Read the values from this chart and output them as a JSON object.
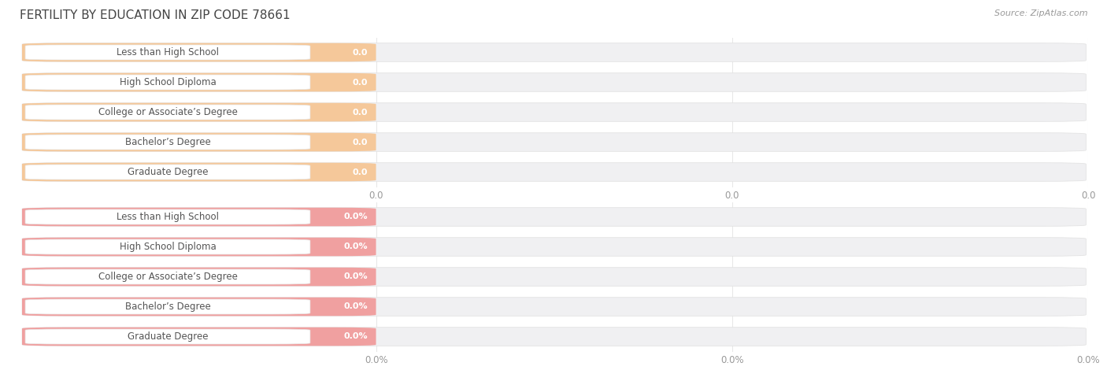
{
  "title": "FERTILITY BY EDUCATION IN ZIP CODE 78661",
  "source": "Source: ZipAtlas.com",
  "top_group": {
    "categories": [
      "Less than High School",
      "High School Diploma",
      "College or Associate’s Degree",
      "Bachelor’s Degree",
      "Graduate Degree"
    ],
    "bar_color": "#F5C89A",
    "bg_color": "#FAE8D2",
    "value_labels": [
      "0.0",
      "0.0",
      "0.0",
      "0.0",
      "0.0"
    ],
    "x_tick_labels": [
      "0.0",
      "0.0",
      "0.0"
    ]
  },
  "bottom_group": {
    "categories": [
      "Less than High School",
      "High School Diploma",
      "College or Associate’s Degree",
      "Bachelor’s Degree",
      "Graduate Degree"
    ],
    "bar_color": "#F0A0A0",
    "bg_color": "#F5D0D0",
    "value_labels": [
      "0.0%",
      "0.0%",
      "0.0%",
      "0.0%",
      "0.0%"
    ],
    "x_tick_labels": [
      "0.0%",
      "0.0%",
      "0.0%"
    ]
  },
  "background_color": "#ffffff",
  "bar_bg_color": "#f0f0f2",
  "title_fontsize": 11,
  "cat_fontsize": 8.5,
  "value_fontsize": 8,
  "source_fontsize": 8,
  "tick_fontsize": 8.5,
  "tick_color": "#999999",
  "grid_color": "#e0e0e0"
}
